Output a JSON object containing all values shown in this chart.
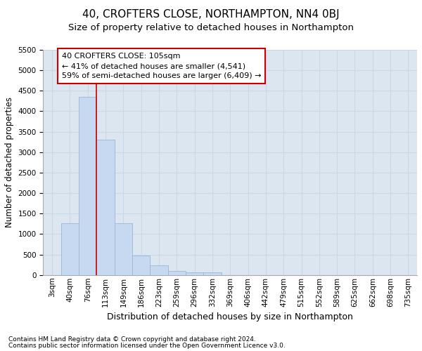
{
  "title": "40, CROFTERS CLOSE, NORTHAMPTON, NN4 0BJ",
  "subtitle": "Size of property relative to detached houses in Northampton",
  "xlabel": "Distribution of detached houses by size in Northampton",
  "ylabel": "Number of detached properties",
  "footnote1": "Contains HM Land Registry data © Crown copyright and database right 2024.",
  "footnote2": "Contains public sector information licensed under the Open Government Licence v3.0.",
  "annotation_line1": "40 CROFTERS CLOSE: 105sqm",
  "annotation_line2": "← 41% of detached houses are smaller (4,541)",
  "annotation_line3": "59% of semi-detached houses are larger (6,409) →",
  "categories": [
    "3sqm",
    "40sqm",
    "76sqm",
    "113sqm",
    "149sqm",
    "186sqm",
    "223sqm",
    "259sqm",
    "296sqm",
    "332sqm",
    "369sqm",
    "406sqm",
    "442sqm",
    "479sqm",
    "515sqm",
    "552sqm",
    "589sqm",
    "625sqm",
    "662sqm",
    "698sqm",
    "735sqm"
  ],
  "values": [
    0,
    1270,
    4350,
    3300,
    1270,
    480,
    230,
    100,
    70,
    70,
    0,
    0,
    0,
    0,
    0,
    0,
    0,
    0,
    0,
    0,
    0
  ],
  "bar_color": "#c6d9f0",
  "bar_edge_color": "#9ab7d8",
  "vline_color": "#cc0000",
  "vline_x": 2.5,
  "annotation_box_edgecolor": "#cc0000",
  "ylim": [
    0,
    5500
  ],
  "yticks": [
    0,
    500,
    1000,
    1500,
    2000,
    2500,
    3000,
    3500,
    4000,
    4500,
    5000,
    5500
  ],
  "grid_color": "#c8d8e8",
  "axes_bg": "#dce6f1",
  "fig_bg": "#ffffff",
  "title_fontsize": 11,
  "subtitle_fontsize": 9.5,
  "xlabel_fontsize": 9,
  "ylabel_fontsize": 8.5,
  "tick_fontsize": 7.5,
  "footnote_fontsize": 6.5,
  "annotation_fontsize": 8
}
